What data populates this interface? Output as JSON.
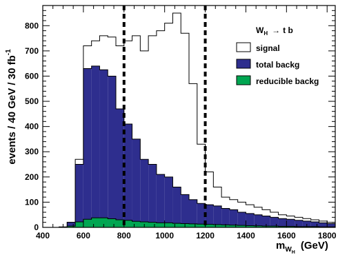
{
  "chart_data": {
    "type": "histogram",
    "title": "",
    "xlabel": {
      "main": "m",
      "sub1": "W",
      "sub2": "H",
      "unit": "(GeV)"
    },
    "ylabel": {
      "text": "events /  40 GeV /   30  fb",
      "sup": "-1"
    },
    "xlim": [
      400,
      1840
    ],
    "ylim": [
      0,
      880
    ],
    "xticks": [
      "400",
      "600",
      "800",
      "1000",
      "1200",
      "1400",
      "1600",
      "1800"
    ],
    "yticks": [
      "0",
      "100",
      "200",
      "300",
      "400",
      "500",
      "600",
      "700",
      "800"
    ],
    "bin_width": 40,
    "bin_starts": [
      480,
      520,
      560,
      600,
      640,
      680,
      720,
      760,
      800,
      840,
      880,
      920,
      960,
      1000,
      1040,
      1080,
      1120,
      1160,
      1200,
      1240,
      1280,
      1320,
      1360,
      1400,
      1440,
      1480,
      1520,
      1560,
      1600,
      1640,
      1680,
      1720,
      1760,
      1800
    ],
    "series": [
      {
        "name": "signal",
        "color": "#ffffff",
        "edge": "#000000",
        "values": [
          2,
          20,
          270,
          720,
          740,
          760,
          755,
          720,
          740,
          760,
          700,
          760,
          780,
          810,
          850,
          770,
          570,
          330,
          220,
          160,
          120,
          110,
          100,
          90,
          80,
          70,
          60,
          50,
          45,
          40,
          35,
          30,
          25,
          20
        ]
      },
      {
        "name": "total  backg",
        "color": "#2e2e8e",
        "edge": "#000000",
        "values": [
          0,
          20,
          250,
          630,
          640,
          625,
          600,
          470,
          410,
          350,
          270,
          250,
          210,
          200,
          160,
          130,
          110,
          95,
          90,
          85,
          75,
          70,
          60,
          55,
          50,
          45,
          40,
          35,
          32,
          28,
          25,
          22,
          18,
          15
        ]
      },
      {
        "name": "reducible  backg",
        "color": "#00a651",
        "edge": "#000000",
        "values": [
          0,
          5,
          22,
          32,
          38,
          38,
          34,
          30,
          28,
          24,
          22,
          20,
          18,
          18,
          16,
          15,
          14,
          13,
          12,
          11,
          10,
          9,
          8,
          7,
          6,
          5,
          5,
          4,
          4,
          3,
          3,
          3,
          2,
          2
        ]
      }
    ],
    "vlines": [
      800,
      1200
    ],
    "legend": {
      "title_main": "W",
      "title_sub": "H",
      "title_arrow": "→",
      "title_rest": "t  b",
      "position": "top-right"
    }
  }
}
